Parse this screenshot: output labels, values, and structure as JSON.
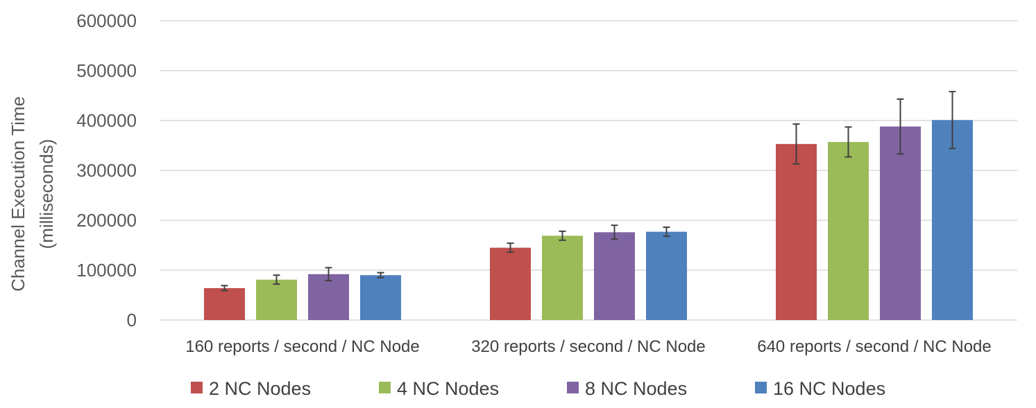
{
  "chart_data": {
    "type": "bar",
    "ylabel_line1": "Channel Execution Time",
    "ylabel_line2": "(milliseconds)",
    "xlabel": "",
    "ylim": [
      0,
      600000
    ],
    "yticks": [
      "0",
      "100000",
      "200000",
      "300000",
      "400000",
      "500000",
      "600000"
    ],
    "grid": true,
    "legend_position": "bottom",
    "categories": [
      "160 reports /  second / NC Node",
      "320 reports /  second / NC Node",
      "640 reports /  second / NC Node"
    ],
    "series": [
      {
        "name": "2 NC Nodes",
        "color": "#c0504d",
        "values": [
          64000,
          145000,
          353000
        ],
        "error": [
          5000,
          9000,
          40000
        ]
      },
      {
        "name": "4 NC Nodes",
        "color": "#9bbb59",
        "values": [
          81000,
          169000,
          357000
        ],
        "error": [
          9000,
          9000,
          30000
        ]
      },
      {
        "name": "8 NC Nodes",
        "color": "#8064a2",
        "values": [
          92000,
          176000,
          388000
        ],
        "error": [
          13000,
          14000,
          55000
        ]
      },
      {
        "name": "16 NC Nodes",
        "color": "#4f81bd",
        "values": [
          90000,
          177000,
          401000
        ],
        "error": [
          5000,
          9000,
          57000
        ]
      }
    ]
  }
}
